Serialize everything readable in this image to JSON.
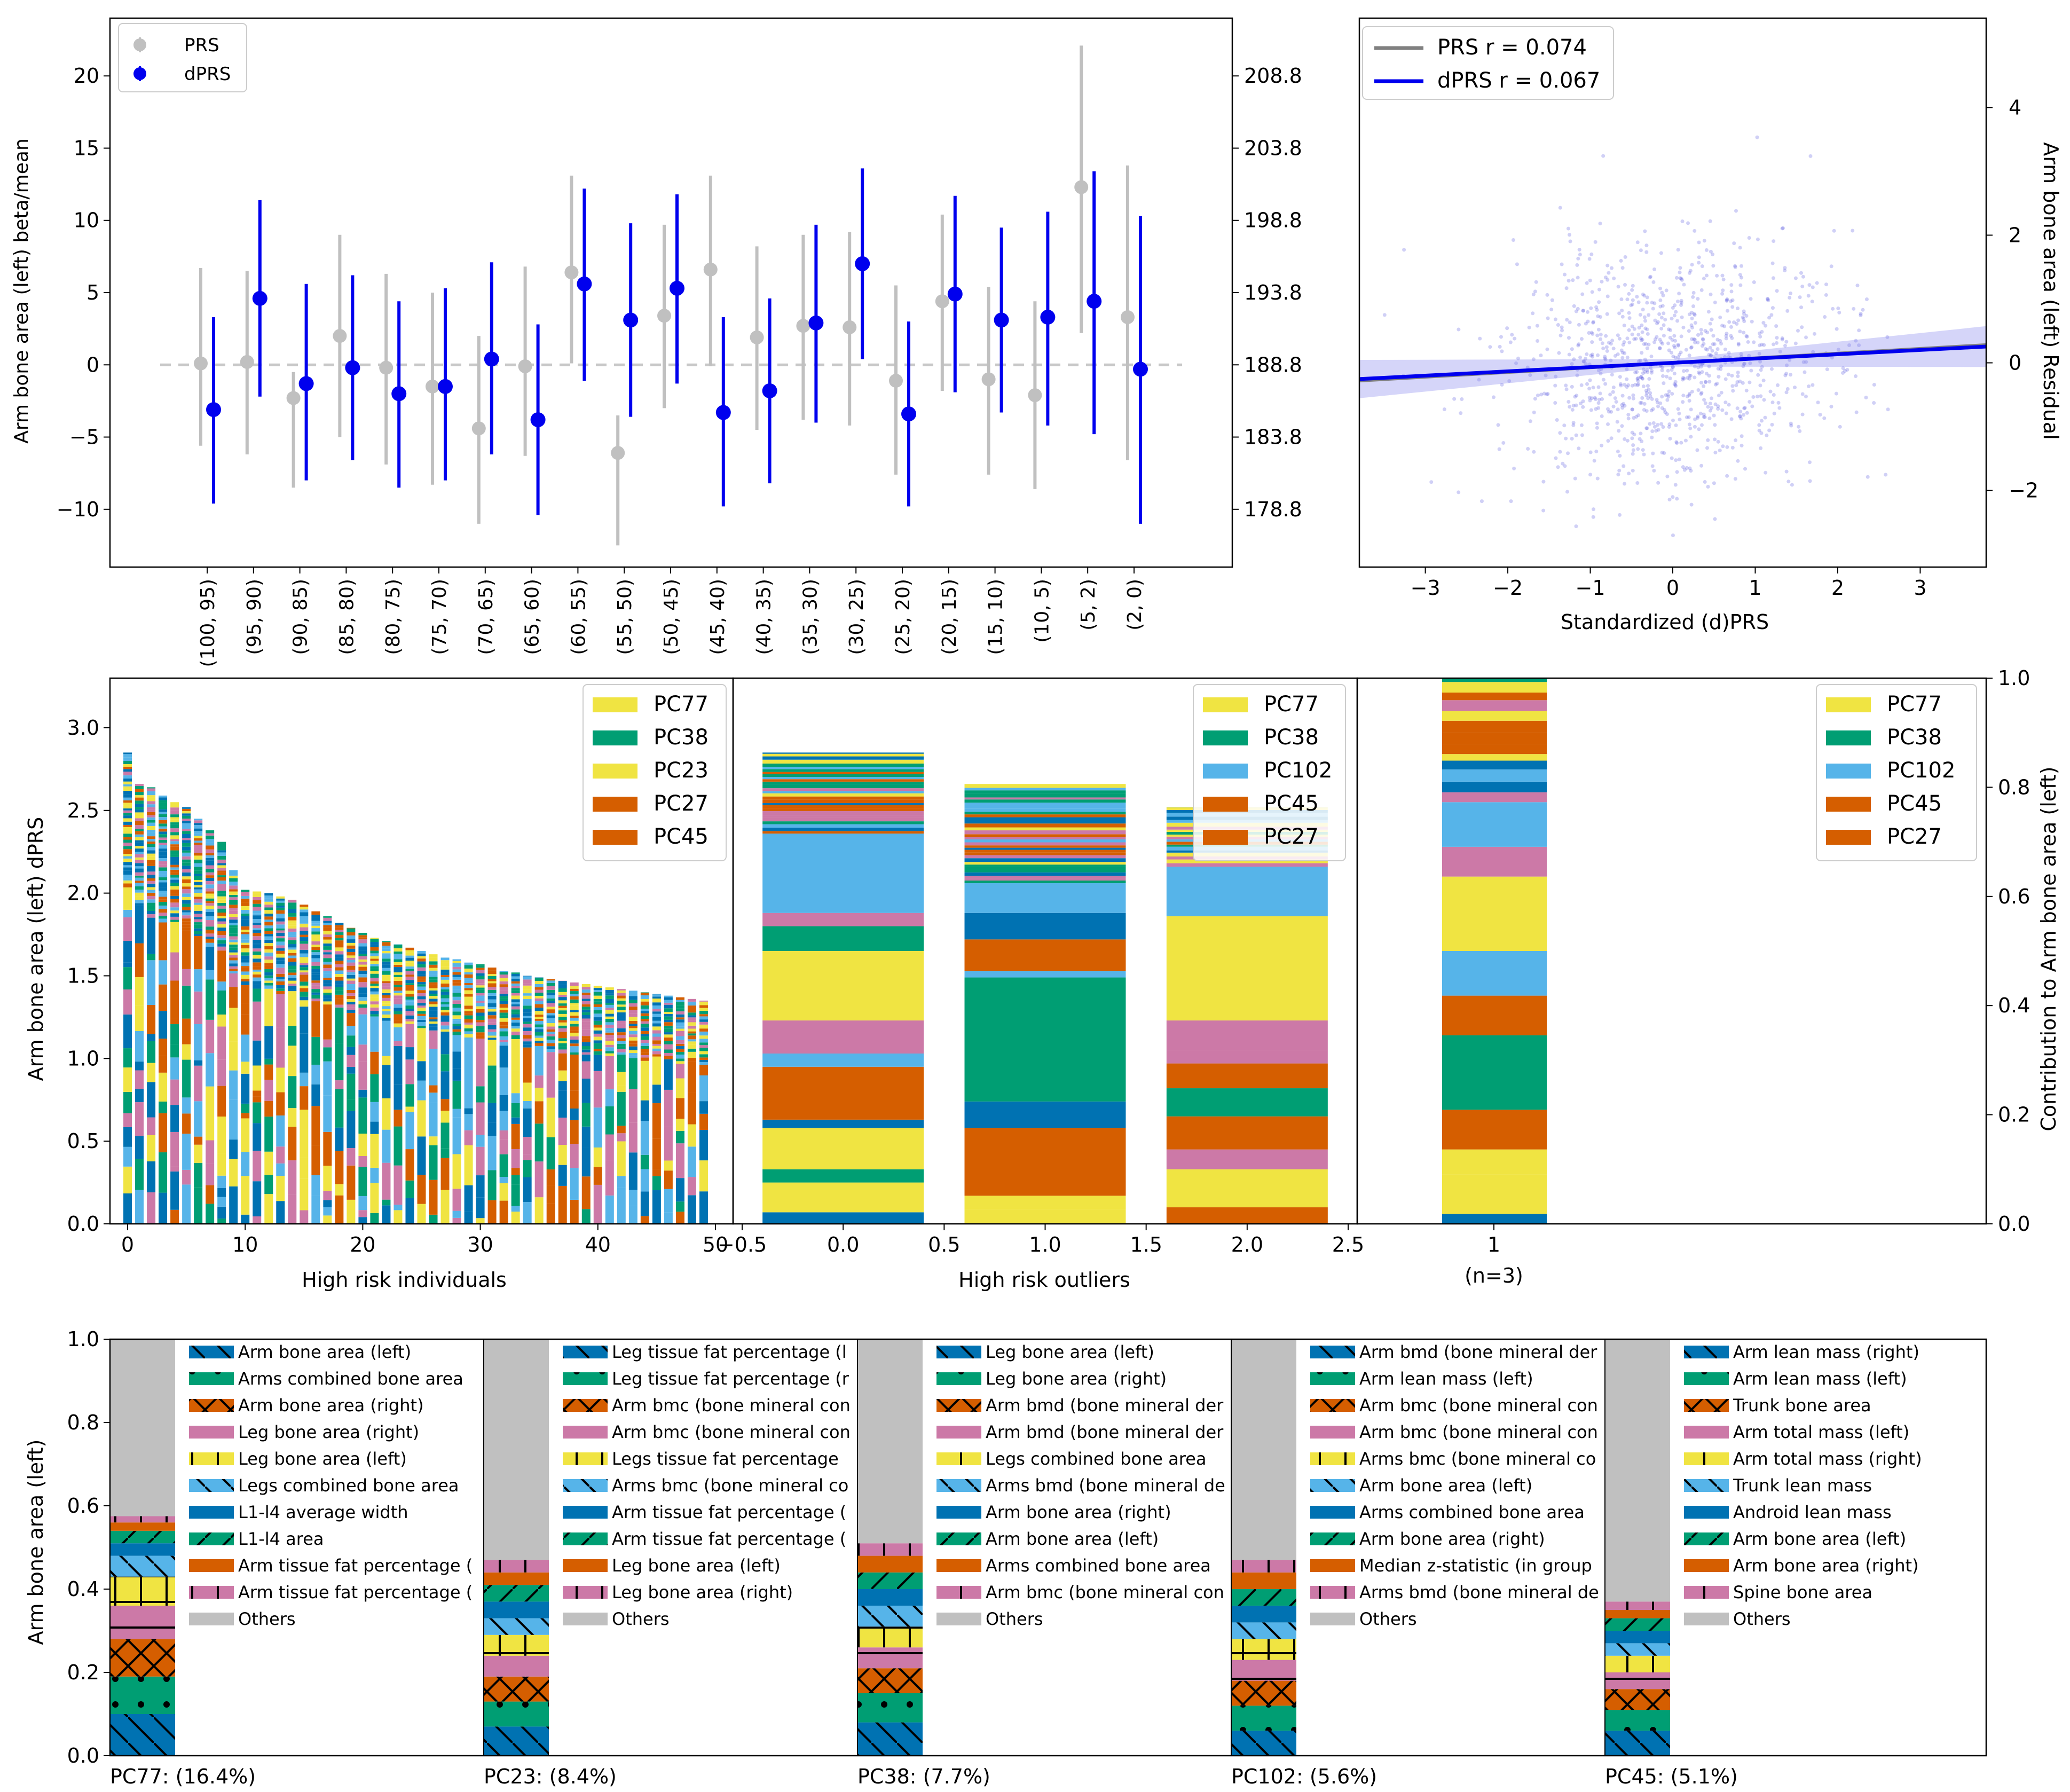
{
  "colors": {
    "prs": "#c0c0c0",
    "dprs": "#0000ee",
    "zero_line": "#c8c8c8",
    "palette": [
      "#0072b2",
      "#009e73",
      "#d55e00",
      "#cc79a7",
      "#f0e442",
      "#56b4e9"
    ],
    "others": "#c0c0c0"
  },
  "chart_data": [
    {
      "id": "bin-effects",
      "type": "scatter",
      "ylabel": "Arm bone area (left) beta/mean",
      "ylabel_right": "",
      "ylim": [
        -14,
        24
      ],
      "yticks": [
        -10,
        -5,
        0,
        5,
        10,
        15,
        20
      ],
      "right_ticks": [
        {
          "value": -10,
          "label": "178.8"
        },
        {
          "value": -5,
          "label": "183.8"
        },
        {
          "value": 0,
          "label": "188.8"
        },
        {
          "value": 5,
          "label": "193.8"
        },
        {
          "value": 10,
          "label": "198.8"
        },
        {
          "value": 15,
          "label": "203.8"
        },
        {
          "value": 20,
          "label": "208.8"
        }
      ],
      "categories": [
        "(100, 95)",
        "(95, 90)",
        "(90, 85)",
        "(85, 80)",
        "(80, 75)",
        "(75, 70)",
        "(70, 65)",
        "(65, 60)",
        "(60, 55)",
        "(55, 50)",
        "(50, 45)",
        "(45, 40)",
        "(40, 35)",
        "(35, 30)",
        "(30, 25)",
        "(25, 20)",
        "(20, 15)",
        "(15, 10)",
        "(10, 5)",
        "(5, 2)",
        "(2, 0)"
      ],
      "series": [
        {
          "name": "PRS",
          "values": [
            0.1,
            0.2,
            -2.3,
            2.0,
            -0.2,
            -1.5,
            -4.4,
            -0.1,
            6.4,
            -6.1,
            3.4,
            6.6,
            1.9,
            2.7,
            2.6,
            -1.1,
            4.4,
            -1.0,
            -2.1,
            12.3,
            3.3
          ],
          "lo": [
            -5.6,
            -6.2,
            -8.5,
            -5.0,
            -6.9,
            -8.3,
            -11.0,
            -6.3,
            0.1,
            -12.5,
            -3.0,
            -0.1,
            -4.5,
            -3.8,
            -4.2,
            -7.6,
            -1.8,
            -7.6,
            -8.6,
            2.2,
            -6.6
          ],
          "hi": [
            6.7,
            6.5,
            -0.5,
            9.0,
            6.3,
            5.0,
            2.0,
            6.8,
            13.1,
            -3.5,
            9.7,
            13.1,
            8.2,
            9.0,
            9.2,
            5.5,
            10.4,
            5.4,
            4.4,
            22.1,
            13.8
          ]
        },
        {
          "name": "dPRS",
          "values": [
            -3.1,
            4.6,
            -1.3,
            -0.2,
            -2.0,
            -1.5,
            0.4,
            -3.8,
            5.6,
            3.1,
            5.3,
            -3.3,
            -1.8,
            2.9,
            7.0,
            -3.4,
            4.9,
            3.1,
            3.3,
            4.4,
            -0.3
          ],
          "lo": [
            -9.6,
            -2.2,
            -8.0,
            -6.6,
            -8.5,
            -8.0,
            -6.2,
            -10.4,
            -1.1,
            -3.6,
            -1.3,
            -9.8,
            -8.2,
            -4.0,
            0.4,
            -9.8,
            -1.9,
            -3.3,
            -4.2,
            -4.8,
            -11.0
          ],
          "hi": [
            3.3,
            11.4,
            5.6,
            6.2,
            4.4,
            5.3,
            7.1,
            2.8,
            12.2,
            9.8,
            11.8,
            3.3,
            4.6,
            9.7,
            13.6,
            3.0,
            11.7,
            9.5,
            10.6,
            13.4,
            10.3
          ]
        }
      ],
      "legend": [
        "PRS",
        "dPRS"
      ],
      "zero_reference": 0
    },
    {
      "id": "residual-scatter",
      "type": "scatter",
      "xlabel": "Standardized (d)PRS",
      "ylabel": "Arm bone area (left) Residual",
      "xlim": [
        -3.8,
        3.8
      ],
      "ylim": [
        -3.2,
        5.4
      ],
      "xticks": [
        -3,
        -2,
        -1,
        0,
        1,
        2,
        3
      ],
      "yticks": [
        -2,
        0,
        2,
        4
      ],
      "legend": [
        {
          "label": "PRS r = 0.074",
          "r": 0.074
        },
        {
          "label": "dPRS r = 0.067",
          "r": 0.067
        }
      ],
      "fit_lines": [
        {
          "name": "PRS",
          "slope": 0.074,
          "intercept": 0
        },
        {
          "name": "dPRS",
          "slope": 0.067,
          "intercept": 0
        }
      ],
      "n_points": 1000
    },
    {
      "id": "top-individuals",
      "type": "bar",
      "stacked": true,
      "ylabel": "Arm bone area (left) dPRS",
      "xlabel": "High risk individuals",
      "ylim": [
        0,
        3.3
      ],
      "yticks": [
        0.0,
        0.5,
        1.0,
        1.5,
        2.0,
        2.5,
        3.0
      ],
      "xticks": [
        0,
        10,
        20,
        30,
        40,
        50
      ],
      "totals": [
        2.85,
        2.66,
        2.64,
        2.59,
        2.55,
        2.52,
        2.45,
        2.38,
        2.31,
        2.14,
        2.02,
        2.01,
        2.0,
        1.98,
        1.96,
        1.93,
        1.89,
        1.86,
        1.82,
        1.79,
        1.76,
        1.73,
        1.71,
        1.69,
        1.67,
        1.65,
        1.63,
        1.61,
        1.6,
        1.58,
        1.57,
        1.55,
        1.53,
        1.52,
        1.5,
        1.49,
        1.48,
        1.47,
        1.46,
        1.45,
        1.44,
        1.43,
        1.42,
        1.41,
        1.4,
        1.39,
        1.38,
        1.37,
        1.36,
        1.35
      ],
      "legend": [
        "PC77",
        "PC38",
        "PC23",
        "PC27",
        "PC45"
      ],
      "legend_colors": [
        "#f0e442",
        "#009e73",
        "#f0e442",
        "#d55e00",
        "#d55e00"
      ]
    },
    {
      "id": "outliers",
      "type": "bar",
      "stacked": true,
      "xlabel": "High risk outliers",
      "xlim": [
        -0.5,
        2.5
      ],
      "xticks": [
        "-0.5",
        "0.0",
        "0.5",
        "1.0",
        "1.5",
        "2.0",
        "2.5"
      ],
      "categories": [
        0,
        1,
        2
      ],
      "totals": [
        2.85,
        2.66,
        2.52
      ],
      "segments": [
        [
          {
            "v": 0.07,
            "c": 0
          },
          {
            "v": 0.18,
            "c": 4
          },
          {
            "v": 0.08,
            "c": 1
          },
          {
            "v": 0.25,
            "c": 4
          },
          {
            "v": 0.05,
            "c": 0
          },
          {
            "v": 0.32,
            "c": 2
          },
          {
            "v": 0.08,
            "c": 5
          },
          {
            "v": 0.2,
            "c": 3
          },
          {
            "v": 0.42,
            "c": 4
          },
          {
            "v": 0.15,
            "c": 1
          },
          {
            "v": 0.08,
            "c": 3
          },
          {
            "v": 0.48,
            "c": 5
          },
          {
            "v": 0.49,
            "c": -1
          }
        ],
        [
          {
            "v": 0.09,
            "c": 4
          },
          {
            "v": 0.08,
            "c": 4
          },
          {
            "v": 0.41,
            "c": 2
          },
          {
            "v": 0.16,
            "c": 0
          },
          {
            "v": 0.75,
            "c": 1
          },
          {
            "v": 0.04,
            "c": 5
          },
          {
            "v": 0.19,
            "c": 2
          },
          {
            "v": 0.16,
            "c": 0
          },
          {
            "v": 0.18,
            "c": 5
          },
          {
            "v": 0.6,
            "c": -1
          }
        ],
        [
          {
            "v": 0.1,
            "c": 2
          },
          {
            "v": 0.23,
            "c": 4
          },
          {
            "v": 0.12,
            "c": 3
          },
          {
            "v": 0.2,
            "c": 2
          },
          {
            "v": 0.17,
            "c": 1
          },
          {
            "v": 0.15,
            "c": 2
          },
          {
            "v": 0.08,
            "c": 3
          },
          {
            "v": 0.18,
            "c": 3
          },
          {
            "v": 0.63,
            "c": 4
          },
          {
            "v": 0.3,
            "c": 5
          },
          {
            "v": 0.36,
            "c": -1
          }
        ]
      ],
      "legend": [
        "PC77",
        "PC38",
        "PC102",
        "PC45",
        "PC27"
      ],
      "legend_colors": [
        "#f0e442",
        "#009e73",
        "#56b4e9",
        "#d55e00",
        "#d55e00"
      ]
    },
    {
      "id": "contribution",
      "type": "bar",
      "stacked": true,
      "ylabel": "Contribution to Arm bone area (left)",
      "ylim": [
        0,
        1.0
      ],
      "yticks": [
        0.0,
        0.2,
        0.4,
        0.6,
        0.8,
        1.0
      ],
      "categories": [
        "1"
      ],
      "tick_sublabel": "(n=3)",
      "segments": [
        {
          "v": 0.02,
          "c": 0
        },
        {
          "v": 0.08,
          "c": 4
        },
        {
          "v": 0.05,
          "c": 4
        },
        {
          "v": 0.08,
          "c": 2
        },
        {
          "v": 0.15,
          "c": 1
        },
        {
          "v": 0.08,
          "c": 2
        },
        {
          "v": 0.09,
          "c": 5
        },
        {
          "v": 0.15,
          "c": 4
        },
        {
          "v": 0.06,
          "c": 3
        },
        {
          "v": 0.09,
          "c": 5
        },
        {
          "v": 0.02,
          "c": 3
        },
        {
          "v": 0.23,
          "c": -1
        }
      ],
      "legend": [
        "PC77",
        "PC38",
        "PC102",
        "PC45",
        "PC27"
      ],
      "legend_colors": [
        "#f0e442",
        "#009e73",
        "#56b4e9",
        "#d55e00",
        "#d55e00"
      ]
    },
    {
      "id": "pc-loadings",
      "type": "bar",
      "stacked": true,
      "ylabel": "Arm bone area (left)",
      "ylim": [
        0,
        1.0
      ],
      "yticks": [
        0.0,
        0.2,
        0.4,
        0.6,
        0.8,
        1.0
      ],
      "panels": [
        {
          "caption": "PC77: (16.4%)",
          "items": [
            "Arm bone area (left)",
            "Arms combined bone area",
            "Arm bone area (right)",
            "Leg bone area (right)",
            "Leg bone area (left)",
            "Legs combined bone area",
            "L1-l4 average width",
            "L1-l4 area",
            "Arm tissue fat percentage (",
            "Arm tissue fat percentage (",
            "Others"
          ],
          "values": [
            0.1,
            0.09,
            0.09,
            0.08,
            0.07,
            0.05,
            0.03,
            0.03,
            0.02,
            0.015
          ]
        },
        {
          "caption": "PC23: (8.4%)",
          "items": [
            "Leg tissue fat percentage (l",
            "Leg tissue fat percentage (r",
            "Arm bmc (bone mineral con",
            "Arm bmc (bone mineral con",
            "Legs tissue fat percentage",
            "Arms bmc (bone mineral co",
            "Arm tissue fat percentage (",
            "Arm tissue fat percentage (",
            "Leg bone area (left)",
            "Leg bone area (right)",
            "Others"
          ],
          "values": [
            0.07,
            0.06,
            0.06,
            0.05,
            0.05,
            0.04,
            0.04,
            0.04,
            0.03,
            0.03
          ]
        },
        {
          "caption": "PC38: (7.7%)",
          "items": [
            "Leg bone area (left)",
            "Leg bone area (right)",
            "Arm bmd (bone mineral der",
            "Arm bmd (bone mineral der",
            "Legs combined bone area",
            "Arms bmd (bone mineral de",
            "Arm bone area (right)",
            "Arm bone area (left)",
            "Arms combined bone area",
            "Arm bmc (bone mineral con",
            "Others"
          ],
          "values": [
            0.08,
            0.07,
            0.06,
            0.05,
            0.05,
            0.05,
            0.04,
            0.04,
            0.04,
            0.03
          ]
        },
        {
          "caption": "PC102: (5.6%)",
          "items": [
            "Arm bmd (bone mineral der",
            "Arm lean mass (left)",
            "Arm bmc (bone mineral con",
            "Arm bmc (bone mineral con",
            "Arms bmc (bone mineral co",
            "Arm bone area (left)",
            "Arms combined bone area",
            "Arm bone area (right)",
            "Median z-statistic (in group",
            "Arms bmd (bone mineral de",
            "Others"
          ],
          "values": [
            0.06,
            0.06,
            0.06,
            0.05,
            0.05,
            0.04,
            0.04,
            0.04,
            0.04,
            0.03
          ]
        },
        {
          "caption": "PC45: (5.1%)",
          "items": [
            "Arm lean mass (right)",
            "Arm lean mass (left)",
            "Trunk bone area",
            "Arm total mass (left)",
            "Arm total mass (right)",
            "Trunk lean mass",
            "Android lean mass",
            "Arm bone area (left)",
            "Arm bone area (right)",
            "Spine bone area",
            "Others"
          ],
          "values": [
            0.06,
            0.05,
            0.05,
            0.04,
            0.04,
            0.03,
            0.03,
            0.03,
            0.02,
            0.02
          ]
        }
      ]
    }
  ]
}
